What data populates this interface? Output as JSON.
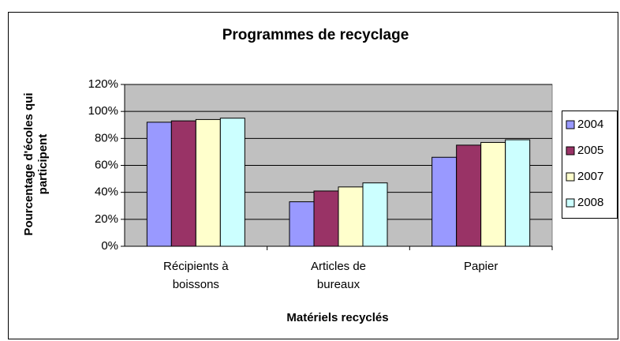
{
  "chart_data": {
    "type": "bar",
    "title": "Programmes de recyclage",
    "x_label": "Matériels recyclés",
    "y_label": "Pourcentage d'écoles qui participent",
    "categories": [
      "Récipients à boissons",
      "Articles de bureaux",
      "Papier"
    ],
    "series": [
      {
        "name": "2004",
        "color": "#9999ff",
        "values": [
          92,
          33,
          66
        ]
      },
      {
        "name": "2005",
        "color": "#993366",
        "values": [
          93,
          41,
          75
        ]
      },
      {
        "name": "2007",
        "color": "#ffffcc",
        "values": [
          94,
          44,
          77
        ]
      },
      {
        "name": "2008",
        "color": "#ccffff",
        "values": [
          95,
          47,
          79
        ]
      }
    ],
    "ylim": [
      0,
      120
    ],
    "yticks": [
      {
        "value": 0,
        "label": "0%"
      },
      {
        "value": 20,
        "label": "20%"
      },
      {
        "value": 40,
        "label": "40%"
      },
      {
        "value": 60,
        "label": "60%"
      },
      {
        "value": 80,
        "label": "80%"
      },
      {
        "value": 100,
        "label": "100%"
      },
      {
        "value": 120,
        "label": "120%"
      }
    ],
    "grid": true,
    "legend": "right"
  }
}
